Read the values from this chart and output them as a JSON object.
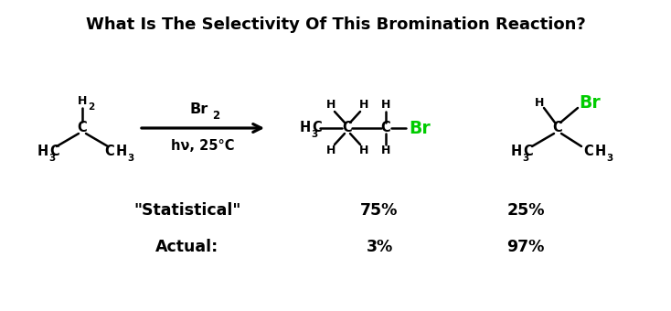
{
  "title": "What Is The Selectivity Of This Bromination Reaction?",
  "title_fontsize": 13,
  "title_fontweight": "bold",
  "background_color": "#ffffff",
  "black": "#000000",
  "green": "#00cc00",
  "statistical_label": "\"Statistical\"",
  "actual_label": "Actual:",
  "stat_primary": "75%",
  "stat_secondary": "25%",
  "actual_primary": "3%",
  "actual_secondary": "97%",
  "fig_width": 7.34,
  "fig_height": 3.4,
  "dpi": 100
}
